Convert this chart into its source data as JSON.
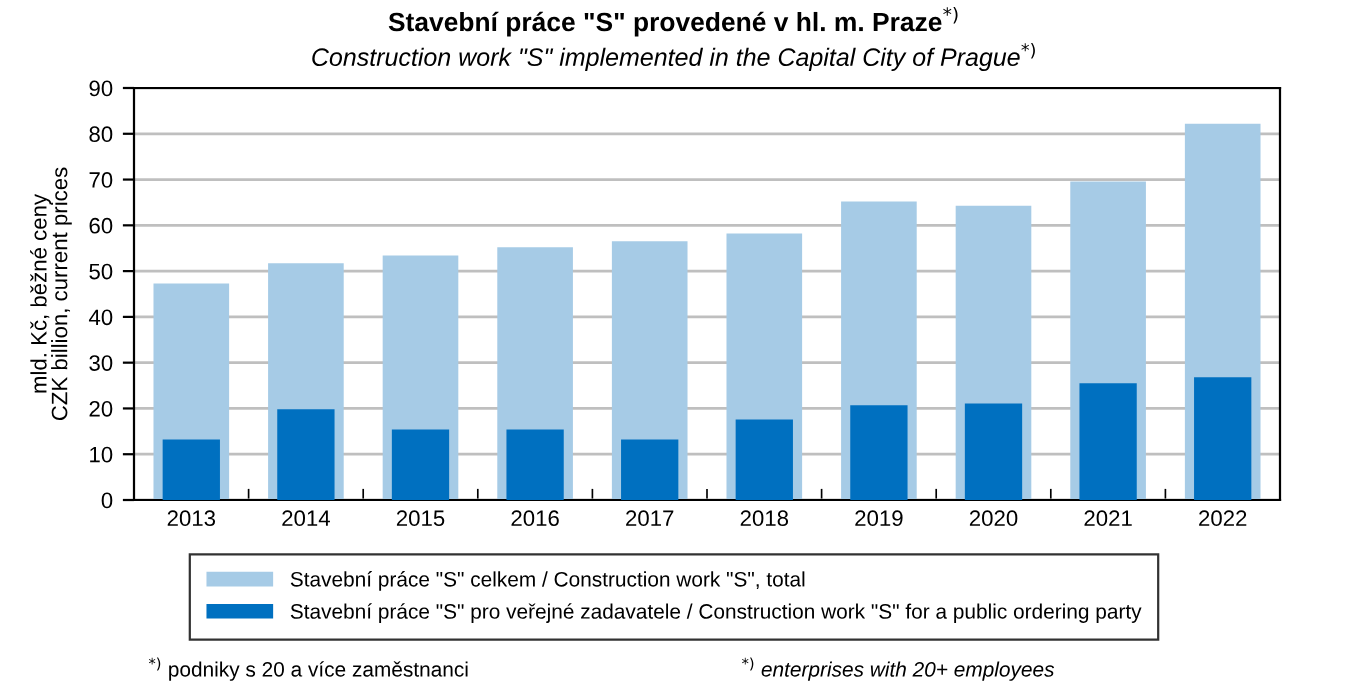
{
  "chart_data": {
    "type": "bar",
    "title": "Stavební práce \"S\" provedené v hl. m. Praze$^{*)}$",
    "subtitle": "Construction work \"S\" implemented in the Capital City of Prague$^{*)}$",
    "ylabel": "mld. Kč, běžné ceny\nCZK billion, current prices",
    "categories": [
      "2013",
      "2014",
      "2015",
      "2016",
      "2017",
      "2018",
      "2019",
      "2020",
      "2021",
      "2022"
    ],
    "series": [
      {
        "name": "Stavební práce \"S\" celkem / Construction work \"S\", total",
        "color": "#a6cbe6",
        "values": [
          47.3,
          51.7,
          53.4,
          55.2,
          56.5,
          58.2,
          65.2,
          64.3,
          69.6,
          82.2
        ]
      },
      {
        "name": "Stavební práce \"S\" pro veřejné zadavatele / Construction work \"S\" for a public ordering party",
        "color": "#0070c0",
        "values": [
          13.2,
          19.8,
          15.4,
          15.4,
          13.2,
          17.6,
          20.7,
          21.1,
          25.5,
          26.8
        ]
      }
    ],
    "ylim": [
      0,
      90
    ],
    "yticks": [
      0,
      10,
      20,
      30,
      40,
      50,
      60,
      70,
      80,
      90
    ],
    "grid": "y",
    "legend": "bottom",
    "annotations": [
      "$^{*)}$ podniky s 20 a více zaměstnanci",
      "$^{*)}$ enterprises with 20+ employees"
    ]
  }
}
